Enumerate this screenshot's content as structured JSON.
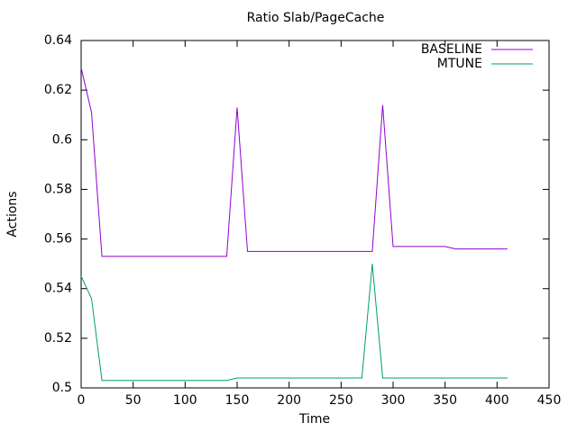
{
  "chart_data": {
    "type": "line",
    "title": "Ratio Slab/PageCache",
    "x_label": "Time",
    "y_label": "Actions",
    "xlim": [
      0,
      450
    ],
    "xticks": [
      0,
      50,
      100,
      150,
      200,
      250,
      300,
      350,
      400,
      450
    ],
    "ylim": [
      0.5,
      0.64
    ],
    "yticks": [
      0.5,
      0.52,
      0.54,
      0.56,
      0.58,
      0.6,
      0.62,
      0.64
    ],
    "legend": "top-right",
    "grid": false,
    "series": [
      {
        "name": "BASELINE",
        "color": "#9400d3",
        "x": [
          0,
          10,
          20,
          140,
          150,
          160,
          280,
          290,
          300,
          350,
          360,
          410
        ],
        "values": [
          0.629,
          0.611,
          0.553,
          0.553,
          0.613,
          0.555,
          0.555,
          0.614,
          0.557,
          0.557,
          0.556,
          0.556
        ]
      },
      {
        "name": "MTUNE",
        "color": "#009e73",
        "x": [
          0,
          10,
          20,
          140,
          150,
          270,
          280,
          290,
          410
        ],
        "values": [
          0.545,
          0.536,
          0.503,
          0.503,
          0.504,
          0.504,
          0.55,
          0.504,
          0.504
        ]
      }
    ]
  }
}
